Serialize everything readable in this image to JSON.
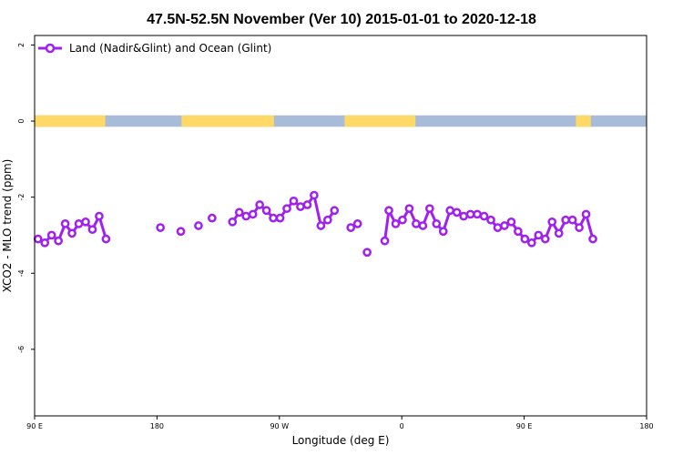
{
  "chart_data": {
    "type": "line",
    "title": "47.5N-52.5N November (Ver 10)   2015-01-01 to 2020-12-18",
    "xlabel": "Longitude (deg E)",
    "ylabel": "XCO2 - MLO trend (ppm)",
    "xlim": [
      90,
      540
    ],
    "ylim": [
      -7.75,
      2.25
    ],
    "x_ticks": [
      {
        "value": 90,
        "label": "90 E"
      },
      {
        "value": 180,
        "label": "180"
      },
      {
        "value": 270,
        "label": "90 W"
      },
      {
        "value": 360,
        "label": "0"
      },
      {
        "value": 450,
        "label": "90 E"
      },
      {
        "value": 540,
        "label": "180"
      }
    ],
    "y_ticks": [
      {
        "value": 2,
        "label": "2"
      },
      {
        "value": 0,
        "label": "0"
      },
      {
        "value": -2,
        "label": "-2"
      },
      {
        "value": -4,
        "label": "-4"
      },
      {
        "value": -6,
        "label": "-6"
      }
    ],
    "grid": false,
    "legend": {
      "position": "top-left"
    },
    "colors": {
      "series": "#a020f0",
      "land": "#ffd966",
      "ocean": "#a8bcd9"
    },
    "land_ocean_band": {
      "y_range": [
        -0.15,
        0.15
      ],
      "land_segments": [
        [
          90,
          142
        ],
        [
          198,
          266
        ],
        [
          318,
          370
        ],
        [
          488,
          499
        ]
      ]
    },
    "series": [
      {
        "name": "Land (Nadir&Glint) and Ocean (Glint)",
        "segments": [
          [
            [
              92.5,
              -3.1
            ],
            [
              97.5,
              -3.2
            ],
            [
              102.5,
              -3.0
            ],
            [
              107.5,
              -3.15
            ],
            [
              112.5,
              -2.7
            ],
            [
              117.5,
              -2.95
            ],
            [
              122.5,
              -2.7
            ],
            [
              127.5,
              -2.65
            ],
            [
              132.5,
              -2.85
            ],
            [
              137.5,
              -2.5
            ],
            [
              142.5,
              -3.1
            ]
          ],
          [
            [
              182.5,
              -2.8
            ]
          ],
          [
            [
              197.5,
              -2.9
            ]
          ],
          [
            [
              210.5,
              -2.75
            ]
          ],
          [
            [
              220.5,
              -2.55
            ]
          ],
          [
            [
              235.5,
              -2.65
            ],
            [
              240.5,
              -2.4
            ],
            [
              245.5,
              -2.5
            ],
            [
              250.5,
              -2.45
            ],
            [
              255.5,
              -2.2
            ],
            [
              260.5,
              -2.35
            ],
            [
              265.5,
              -2.55
            ],
            [
              270.5,
              -2.55
            ],
            [
              275.5,
              -2.3
            ],
            [
              280.5,
              -2.1
            ],
            [
              285.5,
              -2.25
            ],
            [
              290.5,
              -2.2
            ],
            [
              295.5,
              -1.95
            ],
            [
              300.5,
              -2.75
            ],
            [
              305.5,
              -2.6
            ],
            [
              310.5,
              -2.35
            ]
          ],
          [
            [
              322.5,
              -2.8
            ],
            [
              327.5,
              -2.7
            ]
          ],
          [
            [
              334.5,
              -3.45
            ]
          ],
          [
            [
              347.5,
              -3.15
            ],
            [
              350.5,
              -2.35
            ],
            [
              355.5,
              -2.7
            ],
            [
              360.5,
              -2.6
            ],
            [
              365.5,
              -2.3
            ],
            [
              370.5,
              -2.7
            ],
            [
              375.5,
              -2.75
            ],
            [
              380.5,
              -2.3
            ],
            [
              385.5,
              -2.7
            ],
            [
              390.5,
              -2.9
            ],
            [
              395.5,
              -2.35
            ],
            [
              400.5,
              -2.4
            ],
            [
              405.5,
              -2.5
            ],
            [
              410.5,
              -2.45
            ],
            [
              415.5,
              -2.45
            ],
            [
              420.5,
              -2.5
            ],
            [
              425.5,
              -2.6
            ],
            [
              430.5,
              -2.8
            ],
            [
              435.5,
              -2.75
            ],
            [
              440.5,
              -2.65
            ],
            [
              445.5,
              -2.9
            ],
            [
              450.5,
              -3.1
            ],
            [
              455.5,
              -3.2
            ],
            [
              460.5,
              -3.0
            ],
            [
              465.5,
              -3.1
            ],
            [
              470.5,
              -2.65
            ],
            [
              475.5,
              -2.95
            ],
            [
              480.5,
              -2.6
            ],
            [
              485.5,
              -2.6
            ],
            [
              490.5,
              -2.8
            ],
            [
              495.5,
              -2.45
            ],
            [
              500.5,
              -3.1
            ]
          ]
        ]
      }
    ]
  }
}
